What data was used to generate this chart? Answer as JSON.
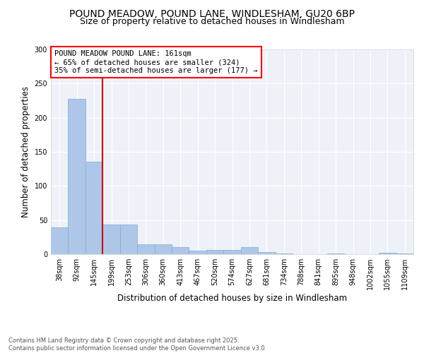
{
  "title_line1": "POUND MEADOW, POUND LANE, WINDLESHAM, GU20 6BP",
  "title_line2": "Size of property relative to detached houses in Windlesham",
  "xlabel": "Distribution of detached houses by size in Windlesham",
  "ylabel": "Number of detached properties",
  "categories": [
    "38sqm",
    "92sqm",
    "145sqm",
    "199sqm",
    "253sqm",
    "306sqm",
    "360sqm",
    "413sqm",
    "467sqm",
    "520sqm",
    "574sqm",
    "627sqm",
    "681sqm",
    "734sqm",
    "788sqm",
    "841sqm",
    "895sqm",
    "948sqm",
    "1002sqm",
    "1055sqm",
    "1109sqm"
  ],
  "values": [
    39,
    228,
    136,
    43,
    43,
    14,
    14,
    10,
    5,
    6,
    6,
    10,
    3,
    1,
    0,
    0,
    1,
    0,
    0,
    2,
    1
  ],
  "bar_color": "#aec6e8",
  "bar_edge_color": "#7bafd4",
  "red_line_x": 2,
  "red_line_color": "#cc0000",
  "annotation_box_text": "POUND MEADOW POUND LANE: 161sqm\n← 65% of detached houses are smaller (324)\n35% of semi-detached houses are larger (177) →",
  "ylim": [
    0,
    300
  ],
  "yticks": [
    0,
    50,
    100,
    150,
    200,
    250,
    300
  ],
  "background_color": "#eef2f8",
  "footer_text": "Contains HM Land Registry data © Crown copyright and database right 2025.\nContains public sector information licensed under the Open Government Licence v3.0.",
  "title_fontsize": 10,
  "subtitle_fontsize": 9,
  "axis_label_fontsize": 8.5,
  "tick_fontsize": 7,
  "annotation_fontsize": 7.5,
  "footer_fontsize": 6
}
